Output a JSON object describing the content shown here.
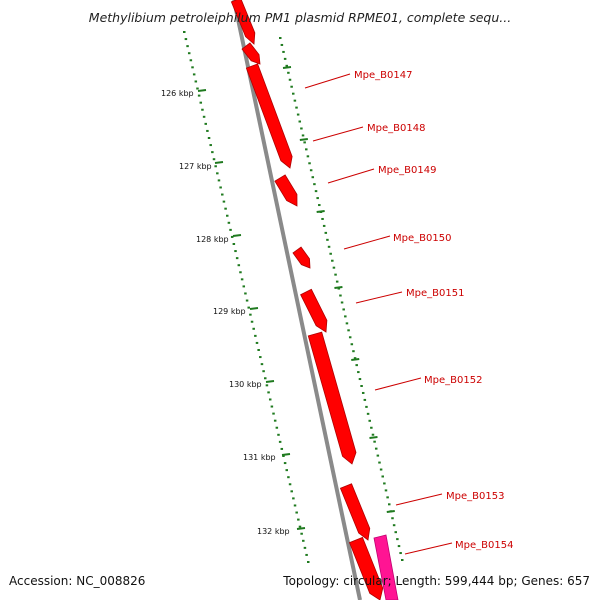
{
  "title": "Methylibium petroleiphilum PM1 plasmid RPME01, complete sequ...",
  "footer": {
    "accession": "Accession: NC_008826",
    "topology": "Topology: circular; Length: 599,444 bp; Genes: 657"
  },
  "colors": {
    "backbone": "#8a8a8a",
    "gene_forward": "#ff0000",
    "gene_highlight": "#ff1493",
    "label": "#cc0000",
    "tick": "#1f7a1f"
  },
  "kbp_ticks": [
    "126 kbp",
    "127 kbp",
    "128 kbp",
    "129 kbp",
    "130 kbp",
    "131 kbp",
    "132 kbp"
  ],
  "genes": [
    {
      "label": "Mpe_B0147"
    },
    {
      "label": "Mpe_B0148"
    },
    {
      "label": "Mpe_B0149"
    },
    {
      "label": "Mpe_B0150"
    },
    {
      "label": "Mpe_B0151"
    },
    {
      "label": "Mpe_B0152"
    },
    {
      "label": "Mpe_B0153"
    },
    {
      "label": "Mpe_B0154"
    }
  ]
}
